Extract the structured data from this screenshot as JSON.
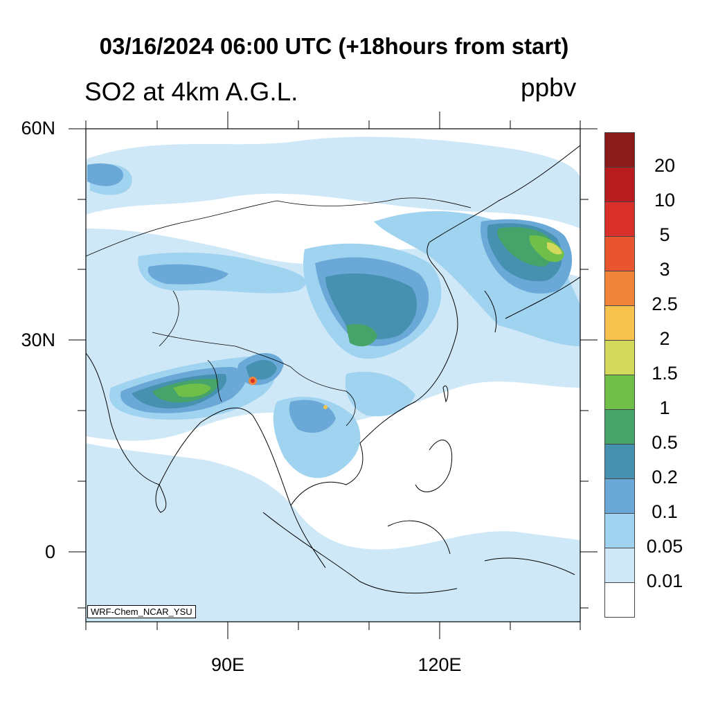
{
  "header": {
    "title": "03/16/2024 06:00 UTC (+18hours from start)",
    "subtitle": "SO2 at 4km A.G.L.",
    "units": "ppbv"
  },
  "map": {
    "lon_range": [
      70,
      140
    ],
    "lat_range": [
      -10,
      60
    ],
    "lat_labels": [
      "60N",
      "30N",
      "0"
    ],
    "lon_labels": [
      "90E",
      "120E"
    ],
    "model_tag": "WRF-Chem_NCAR_YSU"
  },
  "legend": {
    "labels": [
      "20",
      "10",
      "5",
      "3",
      "2.5",
      "2",
      "1.5",
      "1",
      "0.5",
      "0.2",
      "0.1",
      "0.05",
      "0.01"
    ],
    "colors": [
      "#8b1a1a",
      "#b81c1f",
      "#d9302b",
      "#e8552f",
      "#f0853a",
      "#f7c24d",
      "#d3d95a",
      "#6fbf4a",
      "#46a36a",
      "#4691b0",
      "#6aa8d8",
      "#9fd3f0",
      "#cfe8f8",
      "#ffffff"
    ]
  }
}
